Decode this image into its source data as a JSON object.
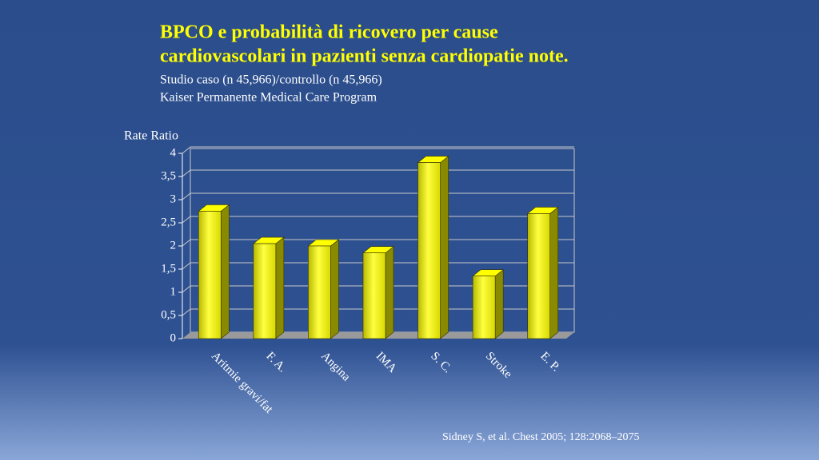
{
  "chart_data": {
    "type": "bar",
    "title": [
      "BPCO e probabilità di ricovero per cause",
      "cardiovascolari in pazienti senza cardiopatie note."
    ],
    "subtitle": [
      "Studio caso (n 45,966)/controllo (n 45,966)",
      "Kaiser Permanente Medical Care Program"
    ],
    "y_label": "Rate Ratio",
    "categories": [
      "Aritmie gravi/fat",
      "F. A.",
      "Angina",
      "IMA",
      "S. C.",
      "Stroke",
      "E. P."
    ],
    "values": [
      2.75,
      2.05,
      2.0,
      1.85,
      3.8,
      1.35,
      2.7
    ],
    "color": "#ffff00",
    "ylim": [
      0,
      4
    ],
    "yticks": [
      0,
      {
        "value": 0.5,
        "label": "0,5"
      },
      1,
      {
        "value": 1.5,
        "label": "1,5"
      },
      2,
      {
        "value": 2.5,
        "label": "2,5"
      },
      3,
      {
        "value": 3.5,
        "label": "3,5"
      },
      4
    ],
    "grid": true,
    "source": "Sidney S, et al. Chest 2005; 128:2068–2075"
  }
}
